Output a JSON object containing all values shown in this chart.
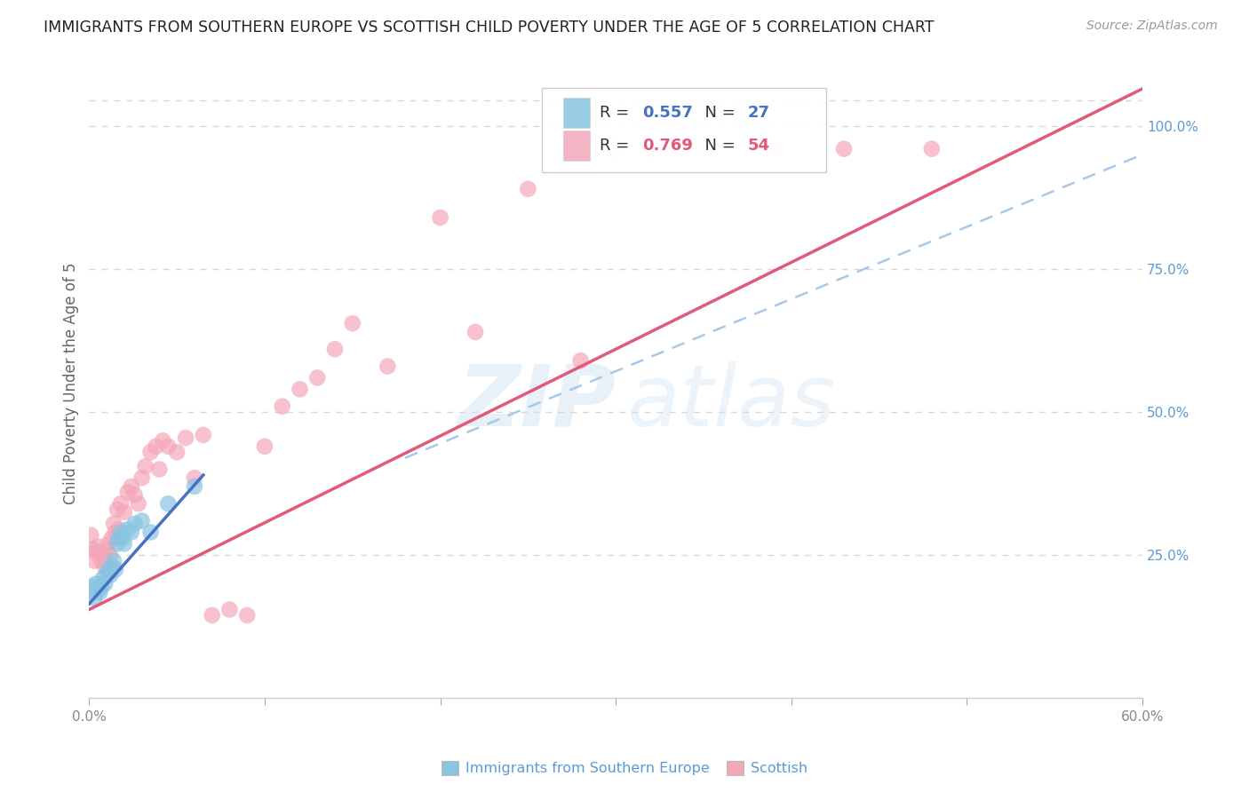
{
  "title": "IMMIGRANTS FROM SOUTHERN EUROPE VS SCOTTISH CHILD POVERTY UNDER THE AGE OF 5 CORRELATION CHART",
  "source": "Source: ZipAtlas.com",
  "ylabel": "Child Poverty Under the Age of 5",
  "x_min": 0.0,
  "x_max": 0.6,
  "y_min": 0.0,
  "y_max": 1.1,
  "blue_color": "#89c4e1",
  "pink_color": "#f4a7b9",
  "blue_line_color": "#4472c4",
  "pink_line_color": "#e05a7a",
  "dashed_line_color": "#a8c8e8",
  "legend_blue_r": "0.557",
  "legend_blue_n": "27",
  "legend_pink_r": "0.769",
  "legend_pink_n": "54",
  "legend_bottom_blue": "Immigrants from Southern Europe",
  "legend_bottom_pink": "Scottish",
  "watermark_zip": "ZIP",
  "watermark_atlas": "atlas",
  "background_color": "#ffffff",
  "grid_color": "#d8d8d8",
  "right_tick_color": "#5b9bd5",
  "bottom_tick_color": "#888888",
  "blue_scatter_x": [
    0.001,
    0.002,
    0.003,
    0.004,
    0.005,
    0.006,
    0.007,
    0.008,
    0.009,
    0.01,
    0.011,
    0.012,
    0.013,
    0.014,
    0.015,
    0.016,
    0.017,
    0.018,
    0.019,
    0.02,
    0.022,
    0.024,
    0.026,
    0.03,
    0.035,
    0.045,
    0.06
  ],
  "blue_scatter_y": [
    0.195,
    0.185,
    0.175,
    0.2,
    0.19,
    0.185,
    0.195,
    0.21,
    0.2,
    0.215,
    0.225,
    0.215,
    0.23,
    0.24,
    0.225,
    0.27,
    0.28,
    0.29,
    0.28,
    0.27,
    0.295,
    0.29,
    0.305,
    0.31,
    0.29,
    0.34,
    0.37
  ],
  "pink_scatter_x": [
    0.001,
    0.002,
    0.003,
    0.004,
    0.005,
    0.006,
    0.007,
    0.008,
    0.009,
    0.01,
    0.011,
    0.012,
    0.013,
    0.014,
    0.015,
    0.016,
    0.017,
    0.018,
    0.02,
    0.022,
    0.024,
    0.026,
    0.028,
    0.03,
    0.032,
    0.035,
    0.038,
    0.04,
    0.042,
    0.045,
    0.05,
    0.055,
    0.06,
    0.065,
    0.07,
    0.08,
    0.09,
    0.1,
    0.11,
    0.12,
    0.13,
    0.14,
    0.15,
    0.17,
    0.2,
    0.22,
    0.25,
    0.28,
    0.3,
    0.32,
    0.35,
    0.39,
    0.43,
    0.48
  ],
  "pink_scatter_y": [
    0.285,
    0.26,
    0.24,
    0.255,
    0.265,
    0.255,
    0.24,
    0.25,
    0.23,
    0.26,
    0.27,
    0.25,
    0.28,
    0.305,
    0.29,
    0.33,
    0.295,
    0.34,
    0.325,
    0.36,
    0.37,
    0.355,
    0.34,
    0.385,
    0.405,
    0.43,
    0.44,
    0.4,
    0.45,
    0.44,
    0.43,
    0.455,
    0.385,
    0.46,
    0.145,
    0.155,
    0.145,
    0.44,
    0.51,
    0.54,
    0.56,
    0.61,
    0.655,
    0.58,
    0.84,
    0.64,
    0.89,
    0.59,
    0.96,
    0.96,
    0.96,
    0.96,
    0.96,
    0.96
  ],
  "blue_line_x": [
    0.0,
    0.065
  ],
  "blue_line_y": [
    0.165,
    0.39
  ],
  "pink_line_x": [
    0.0,
    0.6
  ],
  "pink_line_y": [
    0.155,
    1.065
  ],
  "dash_line_x": [
    0.18,
    0.6
  ],
  "dash_line_y": [
    0.42,
    0.95
  ]
}
